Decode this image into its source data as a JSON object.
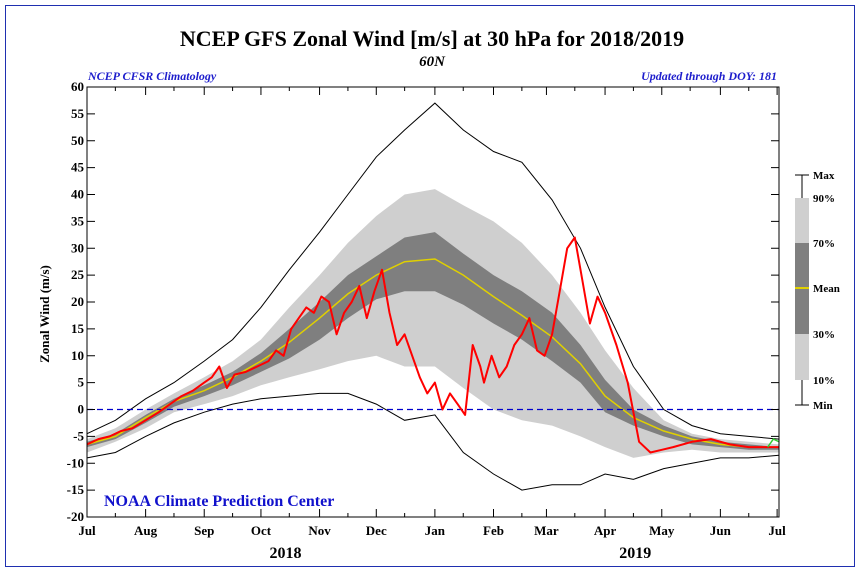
{
  "chart_data": {
    "type": "area",
    "title": "NCEP GFS Zonal Wind [m/s] at 30 hPa for 2018/2019",
    "subtitle": "60N",
    "source_left": "NCEP CFSR Climatology",
    "source_right": "Updated through DOY: 181",
    "ylabel": "Zonal Wind (m/s)",
    "ylim": [
      -20,
      60
    ],
    "yticks": [
      -20,
      -15,
      -10,
      -5,
      0,
      5,
      10,
      15,
      20,
      25,
      30,
      35,
      40,
      45,
      50,
      55,
      60
    ],
    "months": [
      "Jul",
      "Aug",
      "Sep",
      "Oct",
      "Nov",
      "Dec",
      "Jan",
      "Feb",
      "Mar",
      "Apr",
      "May",
      "Jun",
      "Jul"
    ],
    "years": [
      "2018",
      "2019"
    ],
    "credit": "NOAA Climate Prediction Center",
    "zero_line": true,
    "legend": [
      "Max",
      "90%",
      "70%",
      "Mean",
      "30%",
      "10%",
      "Min"
    ],
    "colors": {
      "band_10_90": "#cfcfcf",
      "band_30_70": "#7f7f7f",
      "mean": "#e0d000",
      "observed": "#ff0000",
      "extremes": "#000000",
      "zero": "#0000cc",
      "forecast": "#33cc33"
    },
    "x_unit": "days since 1 Jul 2018",
    "x": [
      0,
      15,
      31,
      46,
      62,
      77,
      92,
      107,
      123,
      138,
      153,
      168,
      184,
      199,
      215,
      230,
      246,
      261,
      274,
      289,
      305,
      320,
      335,
      350,
      366
    ],
    "series": [
      {
        "name": "Max",
        "values": [
          -4.5,
          -2,
          2,
          5,
          9,
          13,
          19,
          26,
          33,
          40,
          47,
          52,
          57,
          52,
          48,
          46,
          39,
          30,
          19,
          8,
          0,
          -3,
          -4.5,
          -5,
          -5.5
        ]
      },
      {
        "name": "90%",
        "values": [
          -5.5,
          -3.5,
          0,
          3,
          6,
          9,
          13,
          19,
          25,
          31,
          36,
          40,
          41,
          38,
          35,
          31,
          25,
          18,
          11,
          4,
          -2,
          -4.5,
          -5.5,
          -6,
          -6.5
        ]
      },
      {
        "name": "70%",
        "values": [
          -6,
          -4.5,
          -1,
          2,
          4.5,
          7,
          10.5,
          15,
          20,
          25,
          28.5,
          32,
          33,
          29,
          25,
          22,
          18,
          12,
          5.5,
          0,
          -3,
          -5,
          -6,
          -6.5,
          -7
        ]
      },
      {
        "name": "Mean",
        "values": [
          -6.5,
          -5,
          -1.5,
          1.5,
          3.5,
          6,
          9,
          12.5,
          17,
          21.5,
          25,
          27.5,
          28,
          25,
          21,
          17.5,
          13.5,
          8.5,
          2.5,
          -1.5,
          -4,
          -5.5,
          -6.5,
          -7,
          -7
        ]
      },
      {
        "name": "30%",
        "values": [
          -7,
          -5.5,
          -2.5,
          0.5,
          2.5,
          4.5,
          7,
          9.5,
          13,
          17,
          20.5,
          22,
          22,
          19.5,
          16,
          13,
          9,
          5,
          -0.5,
          -3,
          -5,
          -6.5,
          -7,
          -7.5,
          -7.5
        ]
      },
      {
        "name": "10%",
        "values": [
          -8,
          -6,
          -3.5,
          -0.5,
          1,
          2.5,
          4.5,
          6,
          7.5,
          9,
          10,
          8,
          8,
          4,
          0,
          -2,
          -3,
          -5,
          -7,
          -9,
          -8,
          -7.5,
          -8,
          -8,
          -8
        ]
      },
      {
        "name": "Min",
        "values": [
          -9,
          -8,
          -5,
          -2.5,
          -0.5,
          1,
          2,
          2.5,
          3,
          3,
          1,
          -2,
          -1,
          -8,
          -12,
          -15,
          -14,
          -14,
          -12,
          -13,
          -11,
          -10,
          -9,
          -9,
          -8.5
        ]
      },
      {
        "name": "2018/2019",
        "x": [
          0,
          6,
          12,
          18,
          24,
          31,
          38,
          44,
          50,
          56,
          62,
          66,
          70,
          74,
          78,
          84,
          90,
          96,
          100,
          104,
          108,
          112,
          116,
          120,
          124,
          128,
          132,
          136,
          140,
          144,
          148,
          152,
          156,
          160,
          164,
          168,
          172,
          176,
          180,
          184,
          188,
          192,
          196,
          200,
          204,
          208,
          210,
          214,
          218,
          222,
          226,
          230,
          234,
          238,
          242,
          246,
          250,
          254,
          258,
          262,
          266,
          270,
          274,
          280,
          286,
          292,
          298,
          304,
          310,
          320,
          330,
          340,
          350,
          360,
          366
        ],
        "values": [
          -6.5,
          -5.5,
          -5,
          -4,
          -3.5,
          -2,
          -0.5,
          1,
          2.5,
          3.5,
          5,
          6,
          8,
          4,
          6.5,
          7,
          8,
          9,
          11,
          10,
          15,
          17,
          19,
          18,
          21,
          20,
          14,
          18,
          20,
          23,
          17,
          22,
          26,
          18,
          12,
          14,
          10,
          6,
          3,
          5,
          0,
          3,
          1,
          -1,
          12,
          8,
          5,
          10,
          6,
          8,
          12,
          14,
          17,
          11,
          10,
          14,
          22,
          30,
          32,
          24,
          16,
          21,
          18,
          12,
          5,
          -6,
          -8,
          -7.5,
          -7,
          -6,
          -5.5,
          -6.5,
          -7,
          -7,
          -7
        ]
      }
    ]
  }
}
